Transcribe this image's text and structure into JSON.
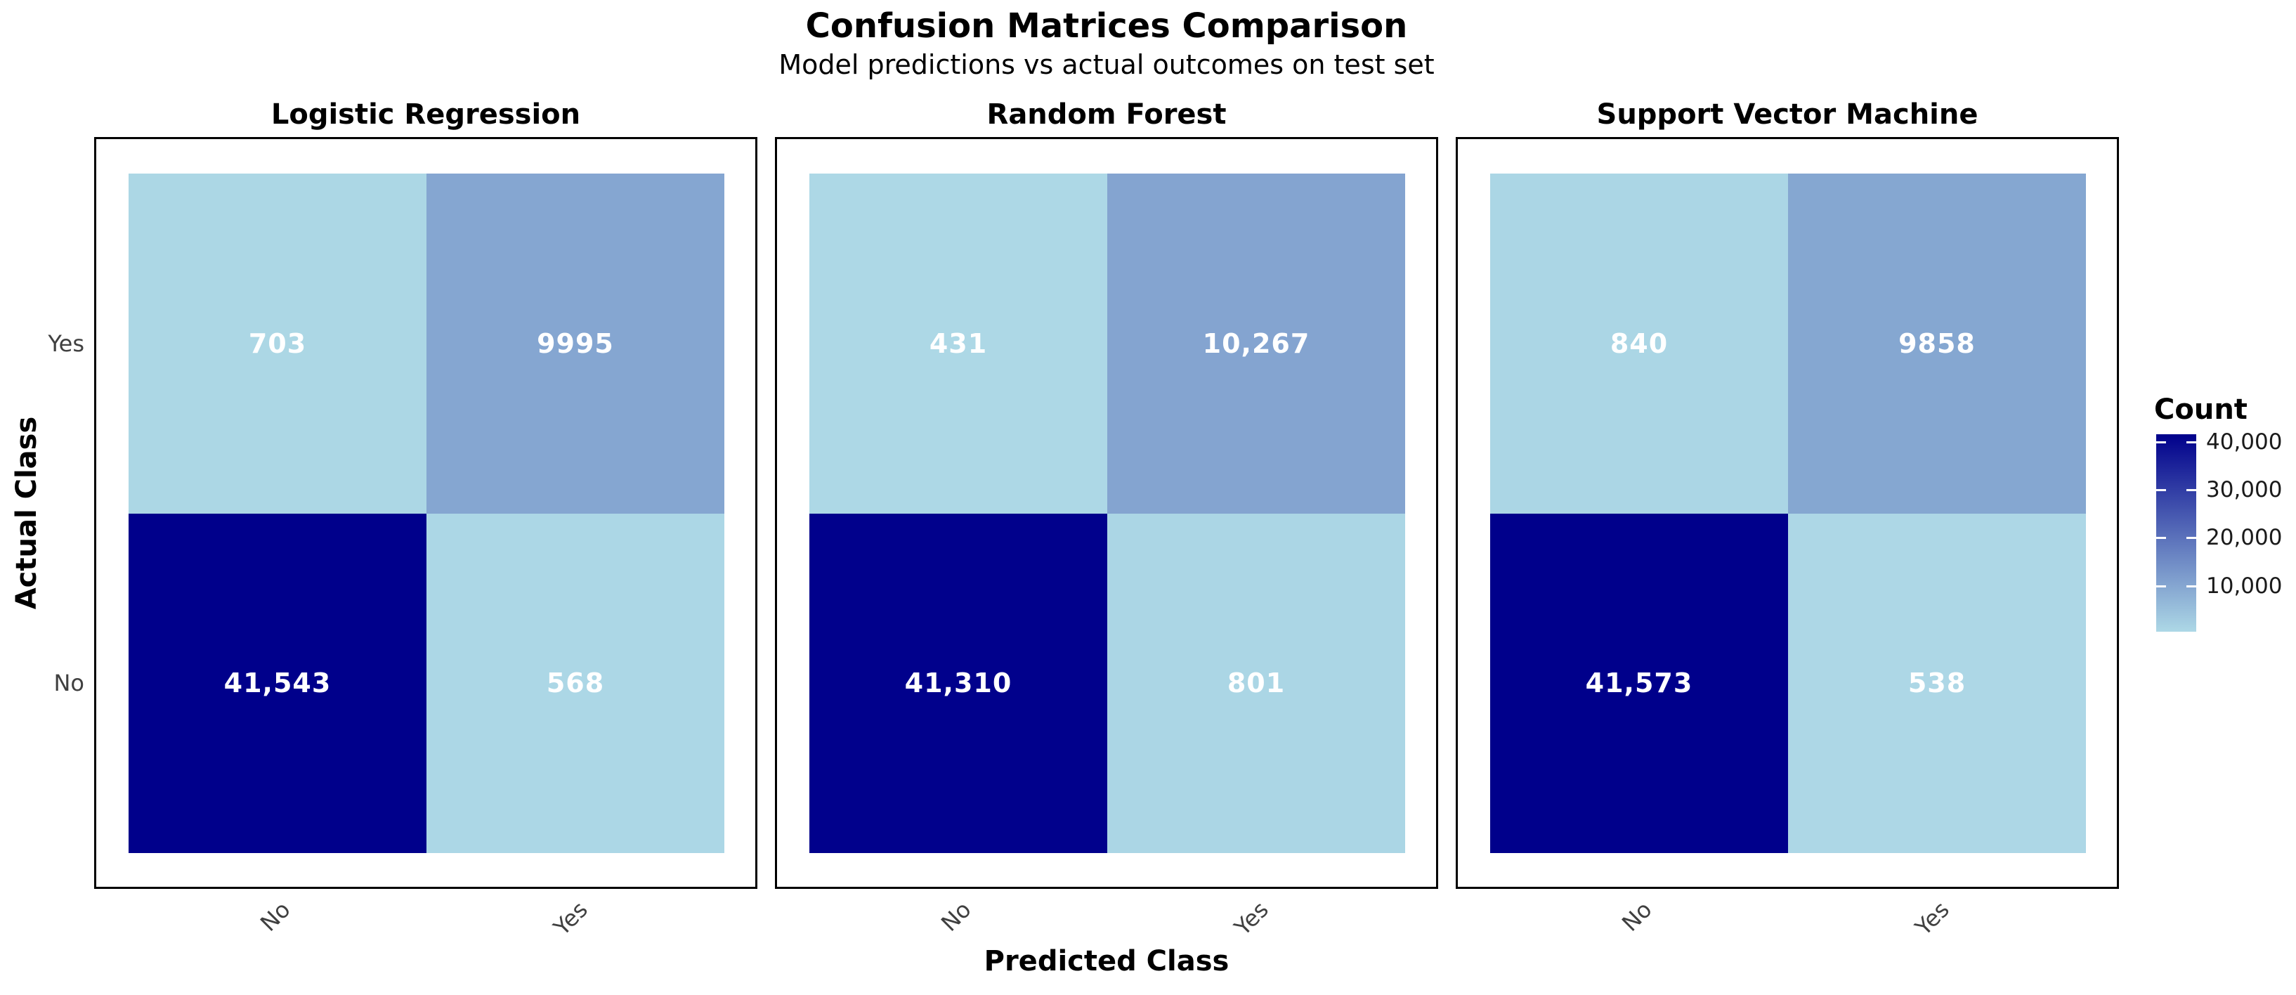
{
  "title": "Confusion Matrices Comparison",
  "subtitle": "Model predictions vs actual outcomes on test set",
  "axes": {
    "x_label": "Predicted Class",
    "y_label": "Actual Class",
    "x_ticks": [
      "No",
      "Yes"
    ],
    "y_ticks": [
      "Yes",
      "No"
    ]
  },
  "legend": {
    "title": "Count",
    "ticks": [
      "40,000",
      "30,000",
      "20,000",
      "10,000"
    ],
    "tick_values": [
      40000,
      30000,
      20000,
      10000
    ],
    "min": 431,
    "max": 41573,
    "color_low": "#ADD8E6",
    "color_high": "#00008B"
  },
  "chart_data": {
    "type": "heatmap",
    "title": "Confusion Matrices Comparison",
    "subtitle": "Model predictions vs actual outcomes on test set",
    "xlabel": "Predicted Class",
    "ylabel": "Actual Class",
    "columns": [
      "No",
      "Yes"
    ],
    "rows": [
      "Yes",
      "No"
    ],
    "colorscale": {
      "low_color": "#ADD8E6",
      "high_color": "#00008B",
      "domain": [
        431,
        41573
      ]
    },
    "legend_position": "right",
    "panels": [
      {
        "title": "Logistic Regression",
        "values": [
          [
            703,
            9995
          ],
          [
            41543,
            568
          ]
        ],
        "labels": [
          [
            "703",
            "9995"
          ],
          [
            "41,543",
            "568"
          ]
        ]
      },
      {
        "title": "Random Forest",
        "values": [
          [
            431,
            10267
          ],
          [
            41310,
            801
          ]
        ],
        "labels": [
          [
            "431",
            "10,267"
          ],
          [
            "41,310",
            "801"
          ]
        ]
      },
      {
        "title": "Support Vector Machine",
        "values": [
          [
            840,
            9858
          ],
          [
            41573,
            538
          ]
        ],
        "labels": [
          [
            "840",
            "9858"
          ],
          [
            "41,573",
            "538"
          ]
        ]
      }
    ]
  }
}
